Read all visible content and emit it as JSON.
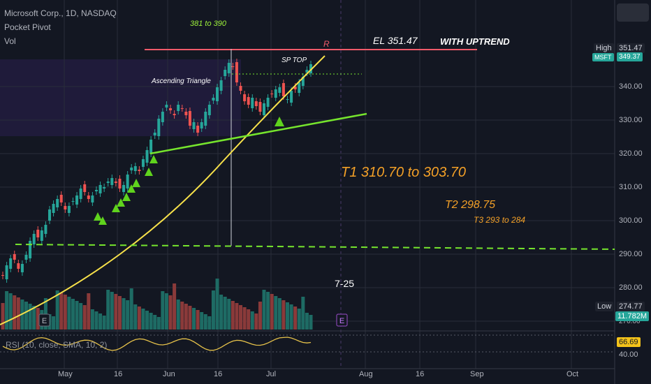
{
  "legend": {
    "symbol": "Microsoft Corp., 1D, NASDAQ",
    "indicator1": "Pocket Pivot",
    "indicator2": "Vol"
  },
  "annotations": {
    "target_top": "381 to 390",
    "ascending_triangle": "Ascending Triangle",
    "sp_top": "SP TOP",
    "r_label": "R",
    "el": "EL 351.47",
    "with_uptrend": "WITH UPTREND",
    "t1": "T1 310.70 to 303.70",
    "t2": "T2 298.75",
    "t3": "T3 293 to 284",
    "date_note": "7-25",
    "earnings_marker": "E"
  },
  "price_axis": [
    "340.00",
    "330.00",
    "320.00",
    "310.00",
    "300.00",
    "290.00",
    "280.00",
    "270.00"
  ],
  "rsi_axis": [
    "40.00"
  ],
  "tags": {
    "high_label": "High",
    "high_value": "351.47",
    "msft_label": "MSFT",
    "msft_value": "349.37",
    "low_label": "Low",
    "low_value": "274.77",
    "volume_value": "11.782M",
    "rsi_value": "66.69",
    "rsi_legend": "RSI (10, close, SMA, 10, 2)"
  },
  "time_axis": [
    "May",
    "16",
    "Jun",
    "16",
    "Jul",
    "Aug",
    "16",
    "Sep",
    "Oct"
  ],
  "colors": {
    "up": "#26a69a",
    "down": "#ef5350",
    "trend_yellow": "#f7e14a",
    "trend_green": "#76e52d",
    "resistance": "#f05a6a",
    "annotation_green": "#9cf03a",
    "annotation_orange": "#f3a027"
  }
}
